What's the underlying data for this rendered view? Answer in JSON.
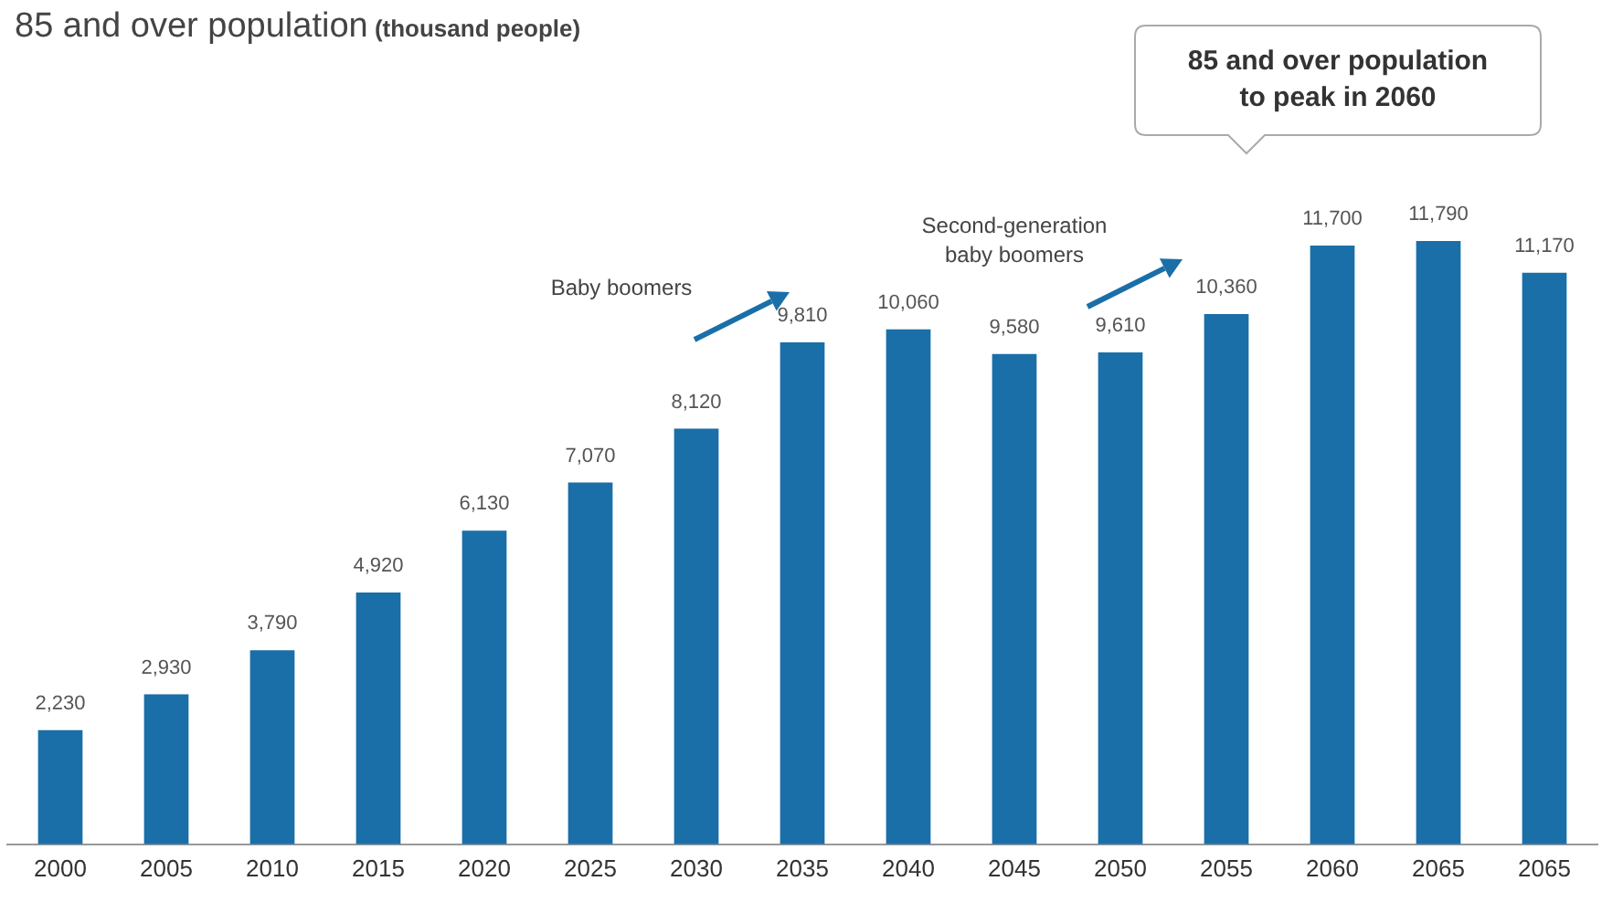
{
  "chart_data": {
    "type": "bar",
    "title": "85 and over population",
    "subtitle": "(thousand people)",
    "categories": [
      "2000",
      "2005",
      "2010",
      "2015",
      "2020",
      "2025",
      "2030",
      "2035",
      "2040",
      "2045",
      "2050",
      "2055",
      "2060",
      "2065",
      "2065"
    ],
    "values": [
      2230,
      2930,
      3790,
      4920,
      6130,
      7070,
      8120,
      9810,
      10060,
      9580,
      9610,
      10360,
      11700,
      11790,
      11170
    ],
    "value_labels": [
      "2,230",
      "2,930",
      "3,790",
      "4,920",
      "6,130",
      "7,070",
      "8,120",
      "9,810",
      "10,060",
      "9,580",
      "9,610",
      "10,360",
      "11,700",
      "11,790",
      "11,170"
    ],
    "color": "#1a6fa8",
    "grid": false,
    "legend": false,
    "annotations": [
      "85 and over population to peak in 2060",
      "Baby boomers",
      "Second-generation baby boomers"
    ]
  }
}
